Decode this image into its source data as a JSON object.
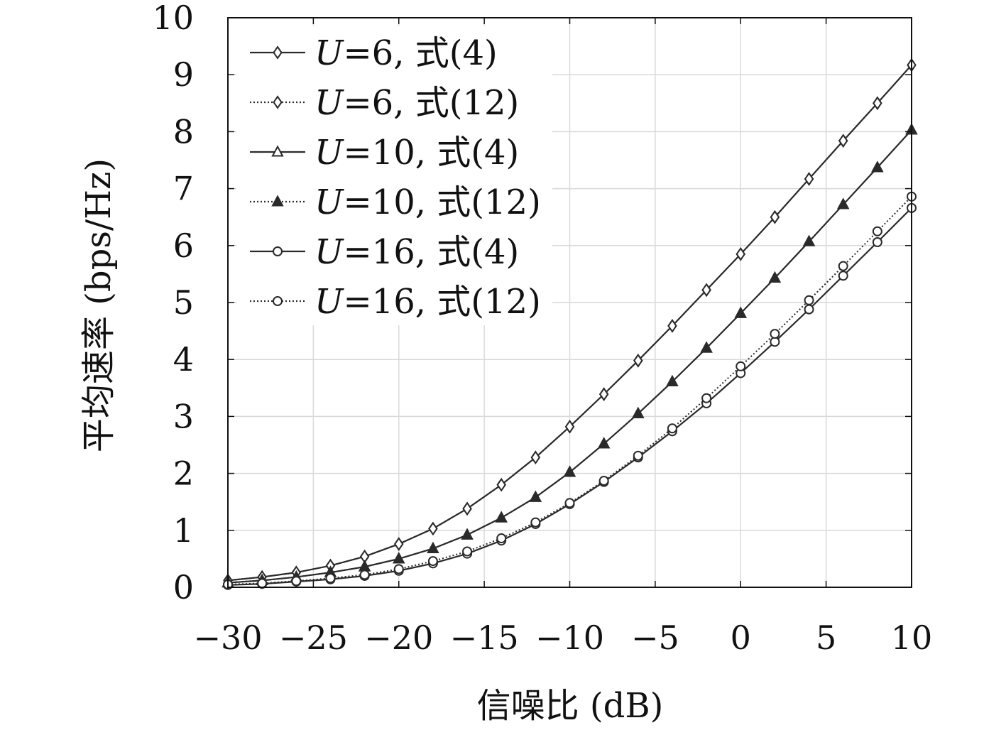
{
  "chart_data": {
    "type": "line",
    "title": "",
    "xlabel": "信噪比 (dB)",
    "ylabel": "平均速率 (bps/Hz)",
    "xlim": [
      -30,
      10
    ],
    "ylim": [
      0,
      10
    ],
    "grid": true,
    "legend_position": "top-left",
    "xticks": [
      -30,
      -25,
      -20,
      -15,
      -10,
      -5,
      0,
      5,
      10
    ],
    "xtick_labels": [
      "−30",
      "−25",
      "−20",
      "−15",
      "−10",
      "−5",
      "0",
      "5",
      "10"
    ],
    "yticks": [
      0,
      1,
      2,
      3,
      4,
      5,
      6,
      7,
      8,
      9,
      10
    ],
    "ytick_labels": [
      "0",
      "1",
      "2",
      "3",
      "4",
      "5",
      "6",
      "7",
      "8",
      "9",
      "10"
    ],
    "x": [
      -30,
      -28,
      -26,
      -24,
      -22,
      -20,
      -18,
      -16,
      -14,
      -12,
      -10,
      -8,
      -6,
      -4,
      -2,
      0,
      2,
      4,
      6,
      8,
      10
    ],
    "series": [
      {
        "name": "U=6, 式(4)",
        "legend_var": "U",
        "legend_rest": "=6, 式(4)",
        "marker": "diamond",
        "linestyle": "solid",
        "color": "#2a2a2a",
        "values": [
          0.12,
          0.18,
          0.26,
          0.38,
          0.54,
          0.76,
          1.03,
          1.38,
          1.8,
          2.28,
          2.82,
          3.39,
          3.98,
          4.59,
          5.22,
          5.85,
          6.5,
          7.17,
          7.84,
          8.5,
          9.17
        ]
      },
      {
        "name": "U=6, 式(12)",
        "legend_var": "U",
        "legend_rest": "=6, 式(12)",
        "marker": "diamond",
        "linestyle": "dotted",
        "color": "#2a2a2a",
        "values": [
          0.12,
          0.18,
          0.26,
          0.38,
          0.54,
          0.76,
          1.03,
          1.38,
          1.8,
          2.28,
          2.82,
          3.39,
          3.98,
          4.59,
          5.22,
          5.85,
          6.5,
          7.17,
          7.84,
          8.5,
          9.17
        ]
      },
      {
        "name": "U=10, 式(4)",
        "legend_var": "U",
        "legend_rest": "=10, 式(4)",
        "marker": "triangle",
        "linestyle": "solid",
        "color": "#2a2a2a",
        "values": [
          0.08,
          0.12,
          0.18,
          0.26,
          0.36,
          0.5,
          0.68,
          0.92,
          1.22,
          1.58,
          2.02,
          2.52,
          3.05,
          3.61,
          4.2,
          4.81,
          5.43,
          6.07,
          6.72,
          7.37,
          8.03
        ]
      },
      {
        "name": "U=10, 式(12)",
        "legend_var": "U",
        "legend_rest": "=10, 式(12)",
        "marker": "triangle-filled",
        "linestyle": "dotted",
        "color": "#2a2a2a",
        "values": [
          0.08,
          0.12,
          0.18,
          0.26,
          0.36,
          0.5,
          0.68,
          0.92,
          1.22,
          1.58,
          2.02,
          2.52,
          3.05,
          3.61,
          4.2,
          4.81,
          5.43,
          6.07,
          6.72,
          7.37,
          8.03
        ]
      },
      {
        "name": "U=16, 式(4)",
        "legend_var": "U",
        "legend_rest": "=16, 式(4)",
        "marker": "circle",
        "linestyle": "solid",
        "color": "#2a2a2a",
        "values": [
          0.04,
          0.06,
          0.1,
          0.14,
          0.2,
          0.29,
          0.42,
          0.59,
          0.82,
          1.11,
          1.46,
          1.85,
          2.28,
          2.74,
          3.23,
          3.76,
          4.31,
          4.88,
          5.47,
          6.06,
          6.66
        ]
      },
      {
        "name": "U=16, 式(12)",
        "legend_var": "U",
        "legend_rest": "=16, 式(12)",
        "marker": "circle",
        "linestyle": "dotted",
        "color": "#2a2a2a",
        "values": [
          0.05,
          0.07,
          0.11,
          0.16,
          0.22,
          0.32,
          0.46,
          0.63,
          0.86,
          1.14,
          1.48,
          1.87,
          2.31,
          2.79,
          3.32,
          3.88,
          4.45,
          5.04,
          5.64,
          6.25,
          6.86
        ]
      }
    ]
  }
}
